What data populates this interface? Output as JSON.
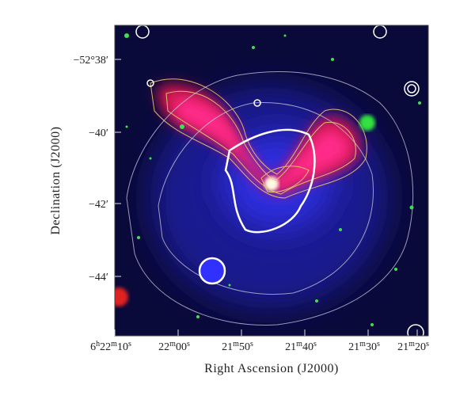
{
  "figure": {
    "x_axis": {
      "label": "Right Ascension (J2000)",
      "ticks": [
        "6h22m10s",
        "22m00s",
        "21m50s",
        "21m40s",
        "21m30s",
        "21m20s"
      ]
    },
    "y_axis": {
      "label": "Declination (J2000)",
      "ticks": [
        "−52°38′",
        "−40′",
        "−42′",
        "−44′"
      ]
    }
  }
}
